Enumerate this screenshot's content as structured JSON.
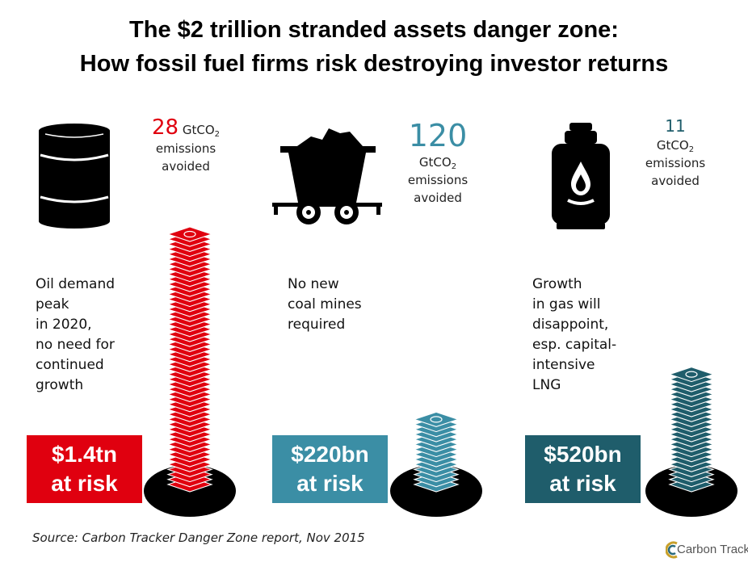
{
  "title": {
    "line1": "The $2 trillion stranded assets danger zone:",
    "line2": "How fossil fuel firms risk destroying investor returns"
  },
  "oil": {
    "icon": "oil-barrel-icon",
    "emissions_value": "28",
    "emissions_unit": "GtCO",
    "emissions_unit_sub": "2",
    "emissions_label": "emissions",
    "emissions_label2": "avoided",
    "desc_lines": [
      "Oil demand",
      "peak",
      "in 2020,",
      "no need for",
      "continued",
      "growth"
    ],
    "amount": "$1.4tn",
    "at_risk": "at risk",
    "color": "#e0000f"
  },
  "coal": {
    "icon": "coal-mine-cart-icon",
    "emissions_value": "120",
    "emissions_unit": "GtCO",
    "emissions_unit_sub": "2",
    "emissions_label": "emissions",
    "emissions_label2": "avoided",
    "desc_lines": [
      "No new",
      "coal mines",
      "required"
    ],
    "amount": "$220bn",
    "at_risk": "at risk",
    "color": "#3b8ea5"
  },
  "gas": {
    "icon": "gas-cylinder-icon",
    "emissions_value": "11",
    "emissions_unit": "GtCO",
    "emissions_unit_sub": "2",
    "emissions_label": "emissions",
    "emissions_label2": "avoided",
    "desc_lines": [
      "Growth",
      "in gas will",
      "disappoint,",
      "esp. capital-",
      "intensive",
      "LNG"
    ],
    "amount": "$520bn",
    "at_risk": "at risk",
    "color": "#1f5d6b"
  },
  "source": "Source: Carbon Tracker Danger Zone report, Nov 2015",
  "logo": {
    "text": "Carbon Tracker"
  }
}
